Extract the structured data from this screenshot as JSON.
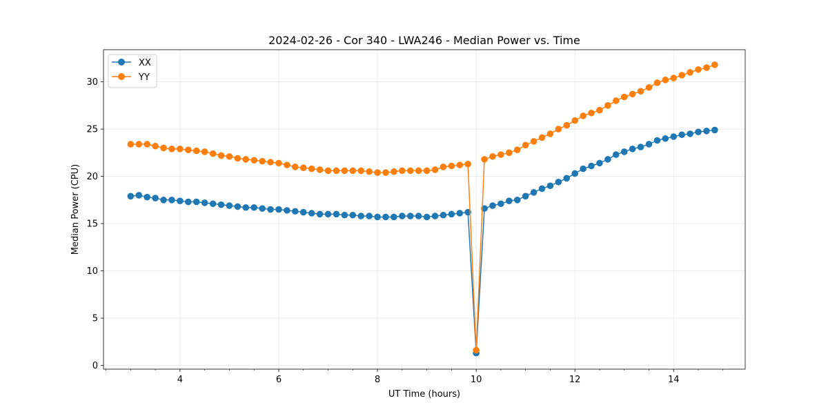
{
  "chart_data": {
    "type": "line",
    "title": "2024-02-26 - Cor 340 - LWA246 - Median Power vs. Time",
    "xlabel": "UT Time (hours)",
    "ylabel": "Median Power (CPU)",
    "xlim": [
      2.45,
      15.45
    ],
    "ylim": [
      -0.4,
      33.4
    ],
    "xticks": [
      4,
      6,
      8,
      10,
      12,
      14
    ],
    "xtick_labels": [
      "4",
      "6",
      "8",
      "10",
      "12",
      "14"
    ],
    "yticks": [
      0,
      5,
      10,
      15,
      20,
      25,
      30
    ],
    "ytick_labels": [
      "0",
      "5",
      "10",
      "15",
      "20",
      "25",
      "30"
    ],
    "grid": true,
    "legend_position": "upper-left",
    "x": [
      3.0,
      3.167,
      3.333,
      3.5,
      3.667,
      3.833,
      4.0,
      4.167,
      4.333,
      4.5,
      4.667,
      4.833,
      5.0,
      5.167,
      5.333,
      5.5,
      5.667,
      5.833,
      6.0,
      6.167,
      6.333,
      6.5,
      6.667,
      6.833,
      7.0,
      7.167,
      7.333,
      7.5,
      7.667,
      7.833,
      8.0,
      8.167,
      8.333,
      8.5,
      8.667,
      8.833,
      9.0,
      9.167,
      9.333,
      9.5,
      9.667,
      9.833,
      10.0,
      10.167,
      10.333,
      10.5,
      10.667,
      10.833,
      11.0,
      11.167,
      11.333,
      11.5,
      11.667,
      11.833,
      12.0,
      12.167,
      12.333,
      12.5,
      12.667,
      12.833,
      13.0,
      13.167,
      13.333,
      13.5,
      13.667,
      13.833,
      14.0,
      14.167,
      14.333,
      14.5,
      14.667,
      14.833
    ],
    "series": [
      {
        "name": "XX",
        "color": "#1f77b4",
        "values": [
          17.9,
          18.0,
          17.8,
          17.7,
          17.5,
          17.5,
          17.4,
          17.3,
          17.3,
          17.2,
          17.1,
          17.0,
          16.9,
          16.8,
          16.7,
          16.7,
          16.6,
          16.5,
          16.5,
          16.4,
          16.3,
          16.2,
          16.1,
          16.0,
          16.0,
          16.0,
          15.9,
          15.9,
          15.8,
          15.8,
          15.7,
          15.7,
          15.7,
          15.8,
          15.8,
          15.8,
          15.7,
          15.8,
          15.9,
          16.0,
          16.1,
          16.2,
          1.3,
          16.6,
          16.9,
          17.1,
          17.4,
          17.5,
          17.9,
          18.3,
          18.7,
          19.0,
          19.4,
          19.8,
          20.3,
          20.8,
          21.1,
          21.4,
          21.8,
          22.3,
          22.6,
          22.9,
          23.1,
          23.4,
          23.8,
          24.0,
          24.2,
          24.4,
          24.5,
          24.7,
          24.8,
          24.9
        ]
      },
      {
        "name": "YY",
        "color": "#ff7f0e",
        "values": [
          23.4,
          23.4,
          23.4,
          23.2,
          23.0,
          22.9,
          22.9,
          22.8,
          22.7,
          22.6,
          22.4,
          22.2,
          22.1,
          21.9,
          21.8,
          21.7,
          21.6,
          21.5,
          21.4,
          21.2,
          21.0,
          20.9,
          20.8,
          20.7,
          20.6,
          20.6,
          20.6,
          20.6,
          20.6,
          20.5,
          20.4,
          20.4,
          20.5,
          20.6,
          20.6,
          20.6,
          20.6,
          20.7,
          21.0,
          21.1,
          21.2,
          21.3,
          1.6,
          21.8,
          22.1,
          22.3,
          22.5,
          22.8,
          23.3,
          23.7,
          24.1,
          24.5,
          25.0,
          25.4,
          25.9,
          26.4,
          26.7,
          27.0,
          27.5,
          28.0,
          28.4,
          28.7,
          29.0,
          29.4,
          29.9,
          30.2,
          30.4,
          30.7,
          31.0,
          31.3,
          31.5,
          31.8
        ]
      }
    ]
  }
}
